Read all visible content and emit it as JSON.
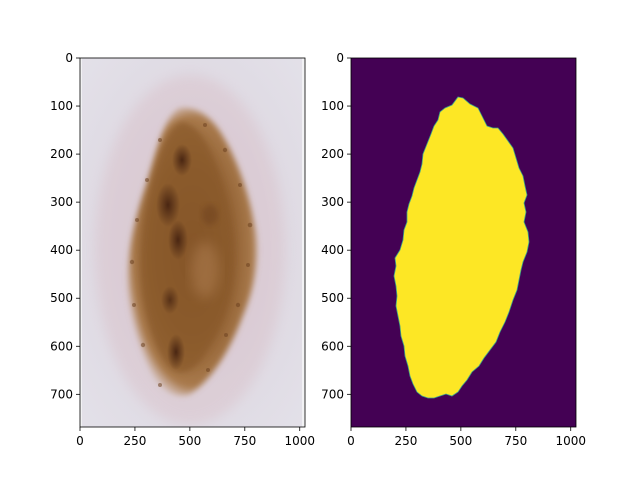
{
  "figure": {
    "panels": [
      {
        "name": "dermoscopy-image",
        "content": "photograph of a pigmented skin lesion (mole)",
        "x_ticks": [
          "0",
          "250",
          "500",
          "750",
          "1000"
        ],
        "y_ticks": [
          "0",
          "100",
          "200",
          "300",
          "400",
          "500",
          "600",
          "700"
        ],
        "colors": {
          "skin": "#dcd6df",
          "lesion_dark": "#5a3218",
          "lesion_mid": "#8a5a2e",
          "lesion_light": "#b98a5c"
        }
      },
      {
        "name": "segmentation-mask",
        "content": "binary lesion mask",
        "x_ticks": [
          "0",
          "250",
          "500",
          "750",
          "1000"
        ],
        "y_ticks": [
          "0",
          "100",
          "200",
          "300",
          "400",
          "500",
          "600",
          "700"
        ],
        "colors": {
          "background": "#440154",
          "foreground": "#fde725"
        }
      }
    ]
  }
}
